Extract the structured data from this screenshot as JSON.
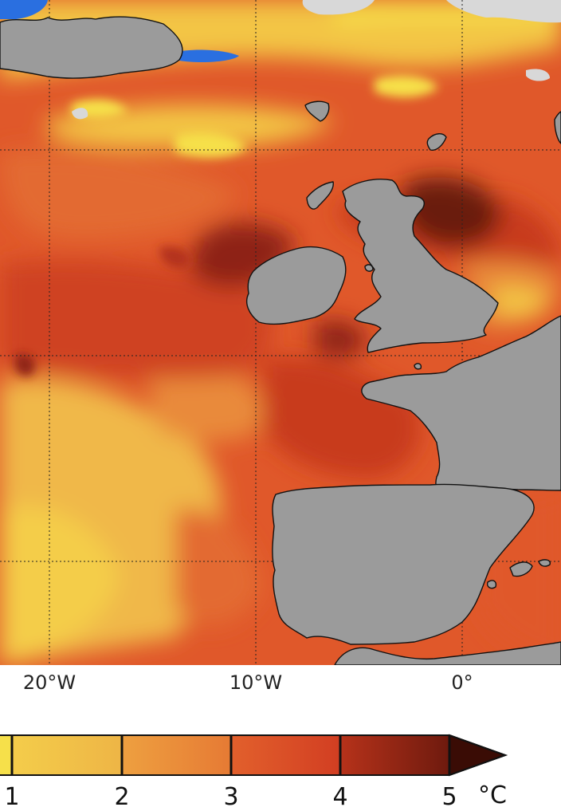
{
  "map": {
    "colors": {
      "land": "#9b9b9b",
      "coastline": "#111111",
      "ice": "#d8d8d8",
      "cold_blue": "#2a6fe0",
      "sea_anomaly_scale": [
        "#f6e04a",
        "#f0b848",
        "#e98a3a",
        "#e0582a",
        "#c83a1e",
        "#8e2414",
        "#4d0f08"
      ]
    },
    "grid": {
      "style": "dotted",
      "color": "#222222"
    },
    "longitude_labels": [
      "20°W",
      "10°W",
      "0°"
    ]
  },
  "colorbar": {
    "ticks": [
      "1",
      "2",
      "3",
      "4",
      "5"
    ],
    "unit": "°C",
    "extend": "max"
  }
}
